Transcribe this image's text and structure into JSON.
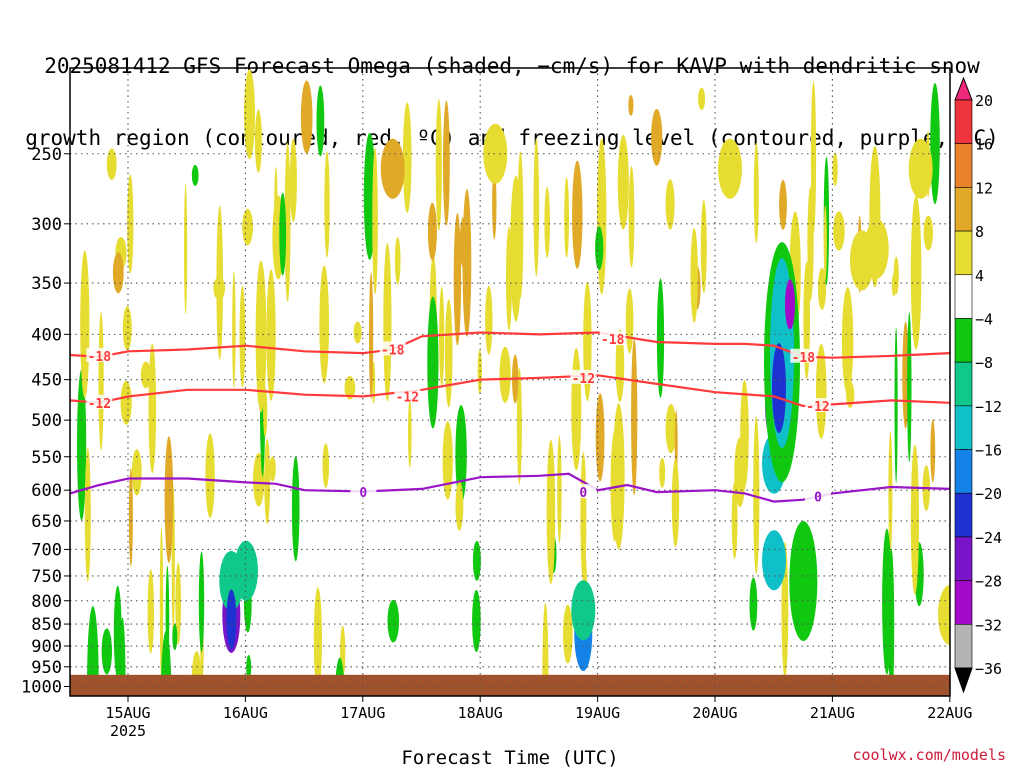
{
  "title_lines": [
    "2025081412 GFS Forecast Omega (shaded, −cm/s) for KAVP with dendritic snow",
    "growth region (contoured, red, ºC) and freezing level (contoured, purple, ºC)"
  ],
  "attribution": "coolwx.com/models",
  "chart_data": {
    "type": "heatmap",
    "xlabel": "Forecast Time (UTC)",
    "ylabel": "",
    "ylog": true,
    "yreversed": true,
    "ylim": [
      1025,
      200
    ],
    "xlim": [
      "2025-08-14T12",
      "2025-08-22T00"
    ],
    "x_ticks": [
      {
        "label": "15AUG",
        "sub": "2025"
      },
      {
        "label": "16AUG"
      },
      {
        "label": "17AUG"
      },
      {
        "label": "18AUG"
      },
      {
        "label": "19AUG"
      },
      {
        "label": "20AUG"
      },
      {
        "label": "21AUG"
      },
      {
        "label": "22AUG"
      }
    ],
    "y_ticks": [
      250,
      300,
      350,
      400,
      450,
      500,
      550,
      600,
      650,
      700,
      750,
      800,
      850,
      900,
      950,
      1000
    ],
    "grid": true,
    "ground_pressure": 970,
    "colorbar": {
      "labels": [
        "20",
        "16",
        "12",
        "8",
        "4",
        "−4",
        "−8",
        "−12",
        "−16",
        "−20",
        "−24",
        "−28",
        "−32",
        "−36"
      ],
      "colors": [
        "#f0287a",
        "#f0343c",
        "#e8822c",
        "#e0aa28",
        "#e6dc32",
        "#ffffff",
        "#10c810",
        "#10c88a",
        "#10c0c8",
        "#1482e6",
        "#1e32d2",
        "#7a14c8",
        "#a00ac8",
        "#b4b4b4",
        "#000000"
      ]
    },
    "contours": [
      {
        "label": "-18",
        "color": "#ff3a3a",
        "labels_at": [
          [
            "2025-08-14T18",
            423
          ],
          [
            "2025-08-17T06",
            416
          ],
          [
            "2025-08-19T03",
            405
          ],
          [
            "2025-08-20T18",
            424
          ]
        ],
        "x": [
          "2025-08-14T12",
          "2025-08-14T18",
          "2025-08-15T00",
          "2025-08-15T12",
          "2025-08-16T00",
          "2025-08-16T12",
          "2025-08-17T00",
          "2025-08-17T06",
          "2025-08-17T12",
          "2025-08-18T00",
          "2025-08-18T12",
          "2025-08-19T00",
          "2025-08-19T12",
          "2025-08-20T00",
          "2025-08-20T06",
          "2025-08-20T12",
          "2025-08-20T18",
          "2025-08-21T00",
          "2025-08-21T12",
          "2025-08-22T00"
        ],
        "y": [
          422,
          424,
          418,
          416,
          412,
          418,
          420,
          416,
          402,
          398,
          400,
          398,
          408,
          410,
          410,
          412,
          424,
          425,
          423,
          420
        ]
      },
      {
        "label": "-12",
        "color": "#ff3a3a",
        "labels_at": [
          [
            "2025-08-14T18",
            478
          ],
          [
            "2025-08-17T09",
            470
          ],
          [
            "2025-08-18T21",
            448
          ],
          [
            "2025-08-20T21",
            482
          ]
        ],
        "x": [
          "2025-08-14T12",
          "2025-08-14T18",
          "2025-08-15T00",
          "2025-08-15T12",
          "2025-08-16T00",
          "2025-08-16T12",
          "2025-08-17T00",
          "2025-08-17T12",
          "2025-08-18T00",
          "2025-08-18T12",
          "2025-08-19T00",
          "2025-08-19T12",
          "2025-08-20T00",
          "2025-08-20T12",
          "2025-08-20T18",
          "2025-08-21T00",
          "2025-08-21T12",
          "2025-08-22T00"
        ],
        "y": [
          475,
          478,
          470,
          462,
          462,
          468,
          470,
          462,
          450,
          448,
          445,
          455,
          465,
          470,
          482,
          480,
          475,
          478
        ]
      },
      {
        "label": "0",
        "color": "#9a14c8",
        "labels_at": [
          [
            "2025-08-17T00",
            603
          ],
          [
            "2025-08-18T21",
            603
          ],
          [
            "2025-08-20T21",
            610
          ]
        ],
        "x": [
          "2025-08-14T12",
          "2025-08-14T18",
          "2025-08-15T00",
          "2025-08-15T12",
          "2025-08-16T00",
          "2025-08-16T06",
          "2025-08-16T12",
          "2025-08-17T00",
          "2025-08-17T12",
          "2025-08-18T00",
          "2025-08-18T12",
          "2025-08-18T18",
          "2025-08-19T00",
          "2025-08-19T06",
          "2025-08-19T12",
          "2025-08-20T00",
          "2025-08-20T06",
          "2025-08-20T12",
          "2025-08-20T18",
          "2025-08-21T00",
          "2025-08-21T12",
          "2025-08-22T00"
        ],
        "y": [
          605,
          592,
          582,
          582,
          588,
          590,
          600,
          602,
          598,
          580,
          578,
          575,
          600,
          592,
          603,
          600,
          605,
          618,
          615,
          605,
          595,
          598
        ]
      }
    ],
    "omega_cells": [
      {
        "x": "2025-08-15T21",
        "p": 830,
        "v": -24
      },
      {
        "x": "2025-08-15T21",
        "p": 760,
        "v": -8
      },
      {
        "x": "2025-08-16T00",
        "p": 740,
        "v": -8
      },
      {
        "x": "2025-08-18T21",
        "p": 870,
        "v": -16
      },
      {
        "x": "2025-08-18T21",
        "p": 820,
        "v": -8
      },
      {
        "x": "2025-08-20T12",
        "p": 400,
        "v": -16
      },
      {
        "x": "2025-08-20T12",
        "p": 480,
        "v": -24
      },
      {
        "x": "2025-08-20T15",
        "p": 380,
        "v": -28
      },
      {
        "x": "2025-08-20T12",
        "p": 560,
        "v": -12
      },
      {
        "x": "2025-08-20T12",
        "p": 720,
        "v": -12
      },
      {
        "x": "2025-08-20T18",
        "p": 720,
        "v": -8
      },
      {
        "x": "2025-08-20T03",
        "p": 260,
        "v": 8
      },
      {
        "x": "2025-08-17T06",
        "p": 260,
        "v": 12
      },
      {
        "x": "2025-08-18T03",
        "p": 250,
        "v": 8
      },
      {
        "x": "2025-08-21T09",
        "p": 320,
        "v": 8
      },
      {
        "x": "2025-08-21T06",
        "p": 330,
        "v": 4
      },
      {
        "x": "2025-08-21T18",
        "p": 260,
        "v": 4
      },
      {
        "x": "2025-08-22T00",
        "p": 830,
        "v": 8
      }
    ]
  }
}
